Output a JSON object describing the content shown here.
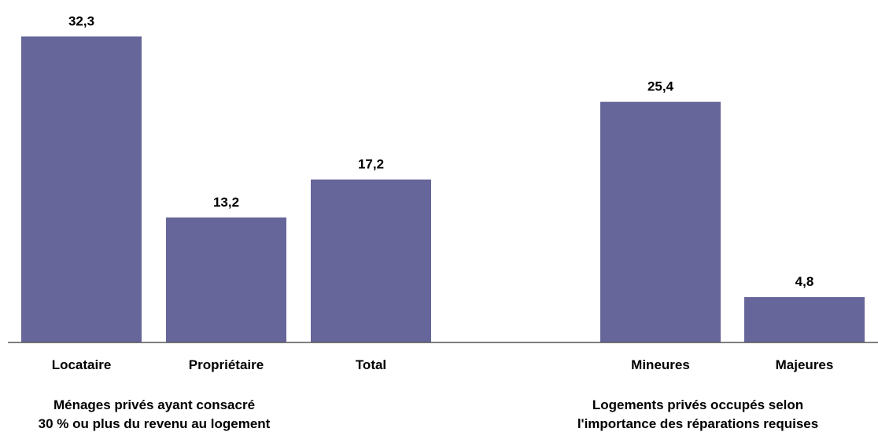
{
  "chart_data": {
    "type": "bar",
    "categories": [
      "Locataire",
      "Propriétaire",
      "Total",
      "Mineures",
      "Majeures"
    ],
    "values": [
      32.3,
      13.2,
      17.2,
      25.4,
      4.8
    ],
    "value_labels": [
      "32,3",
      "13,2",
      "17,2",
      "25,4",
      "4,8"
    ],
    "groups": [
      {
        "label_lines": [
          "Ménages privés ayant consacré",
          "30 % ou plus du revenu au logement"
        ],
        "categories": [
          "Locataire",
          "Propriétaire",
          "Total"
        ]
      },
      {
        "label_lines": [
          "Logements privés occupés selon",
          "l'importance des réparations requises"
        ],
        "categories": [
          "Mineures",
          "Majeures"
        ]
      }
    ],
    "ylim": [
      0,
      33.0
    ],
    "grid": false,
    "bar_color": "#67669A"
  }
}
